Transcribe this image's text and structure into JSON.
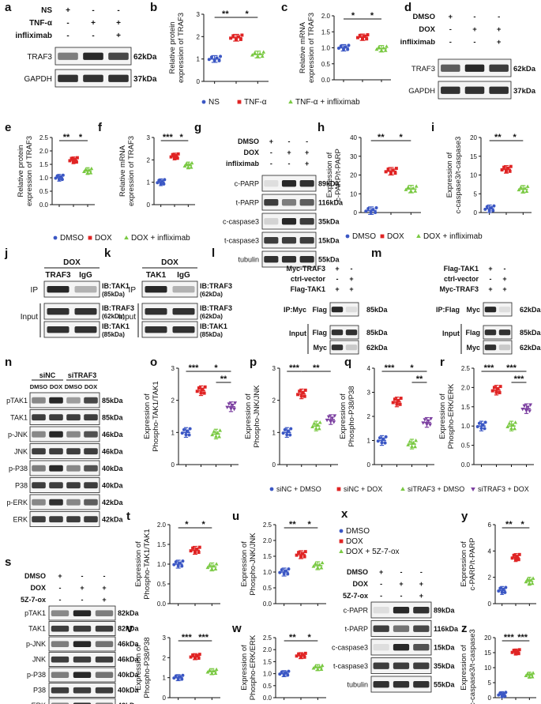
{
  "panel_letters": [
    "a",
    "b",
    "c",
    "d",
    "e",
    "f",
    "g",
    "h",
    "i",
    "j",
    "k",
    "l",
    "m",
    "n",
    "o",
    "p",
    "q",
    "r",
    "s",
    "t",
    "u",
    "v",
    "w",
    "x",
    "y",
    "z"
  ],
  "colors": {
    "blue": "#3b57c4",
    "red": "#e02424",
    "green": "#7ac943",
    "purple": "#7b3fa0",
    "band": "#1c1c1c"
  },
  "blots": {
    "a": {
      "rows": [
        {
          "label": "NS",
          "marks": [
            "+",
            "-",
            "-"
          ]
        },
        {
          "label": "TNF-α",
          "marks": [
            "-",
            "+",
            "+"
          ]
        },
        {
          "label": "infliximab",
          "marks": [
            "-",
            "-",
            "+"
          ]
        }
      ],
      "bands": [
        {
          "name": "TRAF3",
          "kda": "62kDa"
        },
        {
          "name": "GAPDH",
          "kda": "37kDa"
        }
      ]
    },
    "d": {
      "rows": [
        {
          "label": "DMSO",
          "marks": [
            "+",
            "-",
            "-"
          ]
        },
        {
          "label": "DOX",
          "marks": [
            "-",
            "+",
            "+"
          ]
        },
        {
          "label": "infliximab",
          "marks": [
            "-",
            "-",
            "+"
          ]
        }
      ],
      "bands": [
        {
          "name": "TRAF3",
          "kda": "62kDa"
        },
        {
          "name": "GAPDH",
          "kda": "37kDa"
        }
      ]
    },
    "g": {
      "rows": [
        {
          "label": "DMSO",
          "marks": [
            "+",
            "-",
            "-"
          ]
        },
        {
          "label": "DOX",
          "marks": [
            "-",
            "+",
            "+"
          ]
        },
        {
          "label": "infliximab",
          "marks": [
            "-",
            "-",
            "+"
          ]
        }
      ],
      "bands": [
        {
          "name": "c-PARP",
          "kda": "89kDa"
        },
        {
          "name": "t-PARP",
          "kda": "116kDa"
        },
        {
          "name": "c-caspase3",
          "kda": "35kDa"
        },
        {
          "name": "t-caspase3",
          "kda": "15kDa"
        },
        {
          "name": "tubulin",
          "kda": "55kDa"
        }
      ]
    },
    "j": {
      "header": "DOX",
      "cols": [
        "TRAF3",
        "IgG"
      ],
      "ip": "IP",
      "input": "Input",
      "bands": [
        {
          "name": "IB:TAK1",
          "kda": "(85kDa)"
        },
        {
          "name": "IB:TRAF3",
          "kda": "(62kDa)"
        },
        {
          "name": "IB:TAK1",
          "kda": "(85kDa)"
        }
      ]
    },
    "k": {
      "header": "DOX",
      "cols": [
        "TAK1",
        "IgG"
      ],
      "ip": "IP",
      "input": "Input",
      "bands": [
        {
          "name": "IB:TRAF3",
          "kda": "(62kDa)"
        },
        {
          "name": "IB:TRAF3",
          "kda": "(62kDa)"
        },
        {
          "name": "IB:TAK1",
          "kda": "(85kDa)"
        }
      ]
    },
    "l": {
      "rows": [
        {
          "label": "Myc-TRAF3",
          "marks": [
            "+",
            "-"
          ]
        },
        {
          "label": "ctrl-vector",
          "marks": [
            "-",
            "+"
          ]
        },
        {
          "label": "Flag-TAK1",
          "marks": [
            "+",
            "+"
          ]
        }
      ],
      "ip": "IP:Myc",
      "input": "Input",
      "bands": [
        {
          "name": "Flag",
          "kda": "85kDa"
        },
        {
          "name": "Flag",
          "kda": "85kDa"
        },
        {
          "name": "Myc",
          "kda": "62kDa"
        }
      ]
    },
    "m": {
      "rows": [
        {
          "label": "Flag-TAK1",
          "marks": [
            "+",
            "-"
          ]
        },
        {
          "label": "ctrl-vector",
          "marks": [
            "-",
            "+"
          ]
        },
        {
          "label": "Myc-TRAF3",
          "marks": [
            "+",
            "+"
          ]
        }
      ],
      "ip": "IP:Flag",
      "input": "Input",
      "bands": [
        {
          "name": "Myc",
          "kda": "62kDa"
        },
        {
          "name": "Flag",
          "kda": "85kDa"
        },
        {
          "name": "Myc",
          "kda": "62kDa"
        }
      ]
    },
    "n": {
      "groups": [
        "siNC",
        "siTRAF3"
      ],
      "lanes": [
        "DMSO",
        "DOX",
        "DMSO",
        "DOX"
      ],
      "bands": [
        {
          "name": "pTAK1",
          "kda": "85kDa"
        },
        {
          "name": "TAK1",
          "kda": "85kDa"
        },
        {
          "name": "p-JNK",
          "kda": "46kDa"
        },
        {
          "name": "JNK",
          "kda": "46kDa"
        },
        {
          "name": "p-P38",
          "kda": "40kDa"
        },
        {
          "name": "P38",
          "kda": "40kDa"
        },
        {
          "name": "p-ERK",
          "kda": "42kDa"
        },
        {
          "name": "ERK",
          "kda": "42kDa"
        }
      ]
    },
    "s": {
      "rows": [
        {
          "label": "DMSO",
          "marks": [
            "+",
            "-",
            "-"
          ]
        },
        {
          "label": "DOX",
          "marks": [
            "-",
            "+",
            "+"
          ]
        },
        {
          "label": "5Z-7-ox",
          "marks": [
            "-",
            "-",
            "+"
          ]
        }
      ],
      "bands": [
        {
          "name": "pTAK1",
          "kda": "82kDa"
        },
        {
          "name": "TAK1",
          "kda": "82kDa"
        },
        {
          "name": "p-JNK",
          "kda": "46kDa"
        },
        {
          "name": "JNK",
          "kda": "46kDa"
        },
        {
          "name": "p-P38",
          "kda": "40kDa"
        },
        {
          "name": "P38",
          "kda": "40kDa"
        },
        {
          "name": "p-ERK",
          "kda": "42kDa"
        },
        {
          "name": "ERK",
          "kda": "42kDa"
        }
      ]
    },
    "x": {
      "rows": [
        {
          "label": "DMSO",
          "marks": [
            "+",
            "-",
            "-"
          ]
        },
        {
          "label": "DOX",
          "marks": [
            "-",
            "+",
            "+"
          ]
        },
        {
          "label": "5Z-7-ox",
          "marks": [
            "-",
            "-",
            "+"
          ]
        }
      ],
      "bands": [
        {
          "name": "c-PAPR",
          "kda": "89kDa"
        },
        {
          "name": "t-PARP",
          "kda": "116kDa"
        },
        {
          "name": "c-caspase3",
          "kda": "15kDa"
        },
        {
          "name": "t-caspase3",
          "kda": "35kDa"
        },
        {
          "name": "tubulin",
          "kda": "55kDa"
        }
      ]
    }
  },
  "legends": {
    "bc": [
      "NS",
      "TNF-α",
      "TNF-α + infliximab"
    ],
    "efhi": [
      "DMSO",
      "DOX",
      "DOX + infliximab"
    ],
    "opqr": [
      "siNC + DMSO",
      "siNC + DOX",
      "siTRAF3 + DMSO",
      "siTRAF3 + DOX"
    ],
    "x": [
      "DMSO",
      "DOX",
      "DOX + 5Z-7-ox"
    ]
  },
  "chart_data": [
    {
      "panel": "b",
      "type": "scatter",
      "ylabel": "Relative protein expression of TRAF3",
      "ylim": [
        0,
        3
      ],
      "yticks": [
        0,
        1,
        2,
        3
      ],
      "means": [
        1.0,
        1.95,
        1.2
      ],
      "sig": [
        "**",
        "*"
      ]
    },
    {
      "panel": "c",
      "type": "scatter",
      "ylabel": "Relative mRNA expression of TRAF3",
      "ylim": [
        0,
        2
      ],
      "yticks": [
        0.0,
        0.5,
        1.0,
        1.5,
        2.0
      ],
      "means": [
        1.0,
        1.33,
        0.97
      ],
      "sig": [
        "*",
        "*"
      ]
    },
    {
      "panel": "e",
      "type": "scatter",
      "ylabel": "Relative protein expression of TRAF3",
      "ylim": [
        0,
        2.5
      ],
      "yticks": [
        0.0,
        0.5,
        1.0,
        1.5,
        2.0,
        2.5
      ],
      "means": [
        1.0,
        1.65,
        1.25
      ],
      "sig": [
        "**",
        "*"
      ]
    },
    {
      "panel": "f",
      "type": "scatter",
      "ylabel": "Relative mRNA expression of TRAF3",
      "ylim": [
        0,
        3
      ],
      "yticks": [
        0,
        1,
        2,
        3
      ],
      "means": [
        1.0,
        2.15,
        1.75
      ],
      "sig": [
        "***",
        "*"
      ]
    },
    {
      "panel": "h",
      "type": "scatter",
      "ylabel": "Expression of c-PARP/t-PARP",
      "ylim": [
        0,
        40
      ],
      "yticks": [
        0,
        10,
        20,
        30,
        40
      ],
      "means": [
        1,
        22,
        12.5
      ],
      "sig": [
        "**",
        "*"
      ]
    },
    {
      "panel": "i",
      "type": "scatter",
      "ylabel": "Expression of c-caspase3/t-caspase3",
      "ylim": [
        0,
        20
      ],
      "yticks": [
        0,
        5,
        10,
        15,
        20
      ],
      "means": [
        1,
        11.5,
        6.2
      ],
      "sig": [
        "**",
        "*"
      ]
    },
    {
      "panel": "o",
      "type": "scatter",
      "ylabel": "Expression of Phospho-TAK1/TAK1",
      "ylim": [
        0,
        3
      ],
      "yticks": [
        0,
        1,
        2,
        3
      ],
      "means": [
        1.0,
        2.3,
        0.95,
        1.8
      ],
      "sig": [
        "***",
        "*",
        "**"
      ]
    },
    {
      "panel": "p",
      "type": "scatter",
      "ylabel": "Expression of Phospho-JNK/JNK",
      "ylim": [
        0,
        3
      ],
      "yticks": [
        0,
        1,
        2,
        3
      ],
      "means": [
        1.0,
        2.2,
        1.2,
        1.4
      ],
      "sig": [
        "***",
        "**"
      ]
    },
    {
      "panel": "q",
      "type": "scatter",
      "ylabel": "Expression of Phospho-P38/P38",
      "ylim": [
        0,
        4
      ],
      "yticks": [
        0,
        1,
        2,
        3,
        4
      ],
      "means": [
        1.0,
        2.6,
        0.85,
        1.75
      ],
      "sig": [
        "***",
        "*",
        "**"
      ]
    },
    {
      "panel": "r",
      "type": "scatter",
      "ylabel": "Expression of Phospho-ERK/ERK",
      "ylim": [
        0,
        2.5
      ],
      "yticks": [
        0.0,
        0.5,
        1.0,
        1.5,
        2.0,
        2.5
      ],
      "means": [
        1.0,
        1.93,
        1.0,
        1.45
      ],
      "sig": [
        "***",
        "***",
        "***"
      ]
    },
    {
      "panel": "t",
      "type": "scatter",
      "ylabel": "Expression of Phospho-TAK1/TAK1",
      "ylim": [
        0.0,
        2.0
      ],
      "yticks": [
        0.0,
        0.5,
        1.0,
        1.5,
        2.0
      ],
      "means": [
        1.0,
        1.35,
        0.93
      ],
      "sig": [
        "*",
        "*"
      ]
    },
    {
      "panel": "u",
      "type": "scatter",
      "ylabel": "Expression of Phospho-JNK/JNK",
      "ylim": [
        0,
        2.5
      ],
      "yticks": [
        0.0,
        0.5,
        1.0,
        1.5,
        2.0,
        2.5
      ],
      "means": [
        1.0,
        1.55,
        1.2
      ],
      "sig": [
        "**",
        "*"
      ]
    },
    {
      "panel": "v",
      "type": "scatter",
      "ylabel": "Expression of Phospho-P38/P38",
      "ylim": [
        0,
        3
      ],
      "yticks": [
        0,
        1,
        2,
        3
      ],
      "means": [
        1.0,
        2.05,
        1.3
      ],
      "sig": [
        "***",
        "***"
      ]
    },
    {
      "panel": "w",
      "type": "scatter",
      "ylabel": "Expression of Phospho-ERK/ERK",
      "ylim": [
        0,
        2.5
      ],
      "yticks": [
        0.0,
        0.5,
        1.0,
        1.5,
        2.0,
        2.5
      ],
      "means": [
        1.0,
        1.75,
        1.25
      ],
      "sig": [
        "**",
        "*"
      ]
    },
    {
      "panel": "y",
      "type": "scatter",
      "ylabel": "Expression of c-PARP/t-PARP",
      "ylim": [
        0,
        6
      ],
      "yticks": [
        0,
        2,
        4,
        6
      ],
      "means": [
        1.0,
        3.5,
        1.7
      ],
      "sig": [
        "**",
        "*"
      ]
    },
    {
      "panel": "z",
      "type": "scatter",
      "ylabel": "Expression of c-caspase3/t-caspase3",
      "ylim": [
        0,
        20
      ],
      "yticks": [
        0,
        5,
        10,
        15,
        20
      ],
      "means": [
        1,
        15.2,
        7.5
      ],
      "sig": [
        "***",
        "***"
      ]
    }
  ]
}
